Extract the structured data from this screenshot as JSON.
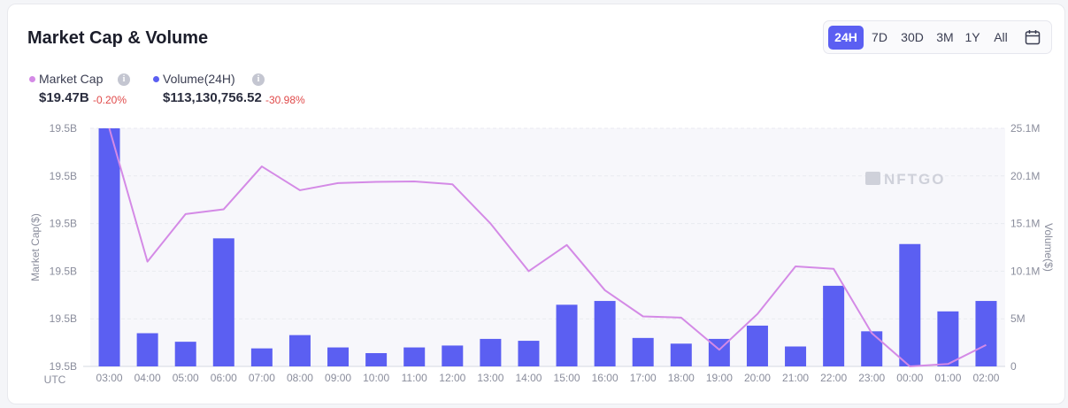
{
  "header": {
    "title": "Market Cap & Volume"
  },
  "ranges": {
    "items": [
      "24H",
      "7D",
      "30D",
      "3M",
      "1Y",
      "All"
    ],
    "active": "24H",
    "calendar_icon": "calendar-icon"
  },
  "summary": {
    "market_cap": {
      "label": "Market Cap",
      "value": "$19.47B",
      "change": "-0.20%",
      "color": "#d48ae6"
    },
    "volume": {
      "label": "Volume(24H)",
      "value": "$113,130,756.52",
      "change": "-30.98%",
      "color": "#5b5ff2"
    },
    "info_icon": "info-icon"
  },
  "watermark": "NFTGO",
  "chart_data": {
    "type": "bar",
    "x_label": "UTC",
    "categories": [
      "03:00",
      "04:00",
      "05:00",
      "06:00",
      "07:00",
      "08:00",
      "09:00",
      "10:00",
      "11:00",
      "12:00",
      "13:00",
      "14:00",
      "15:00",
      "16:00",
      "17:00",
      "18:00",
      "19:00",
      "20:00",
      "21:00",
      "22:00",
      "23:00",
      "00:00",
      "01:00",
      "02:00"
    ],
    "series": [
      {
        "name": "Volume(24H)",
        "type": "bar",
        "axis": "right",
        "color": "#5b5ff2",
        "values": [
          25.1,
          3.5,
          2.6,
          13.5,
          1.9,
          3.3,
          2.0,
          1.4,
          2.0,
          2.2,
          2.9,
          2.7,
          6.5,
          6.9,
          3.0,
          2.4,
          2.9,
          4.3,
          2.1,
          8.5,
          3.7,
          12.9,
          5.8,
          6.9
        ]
      },
      {
        "name": "Market Cap",
        "type": "line",
        "axis": "left",
        "color": "#d48ae6",
        "values": [
          1.0,
          0.44,
          0.64,
          0.66,
          0.84,
          0.74,
          0.77,
          0.775,
          0.777,
          0.765,
          0.6,
          0.4,
          0.51,
          0.32,
          0.21,
          0.205,
          0.07,
          0.22,
          0.42,
          0.41,
          0.14,
          0.0,
          0.01,
          0.09
        ]
      }
    ],
    "y_left": {
      "label": "Market Cap($)",
      "ticks": [
        "19.5B",
        "19.5B",
        "19.5B",
        "19.5B",
        "19.5B",
        "19.5B"
      ]
    },
    "y_right": {
      "label": "Volume($)",
      "ticks": [
        "0",
        "5M",
        "10.1M",
        "15.1M",
        "20.1M",
        "25.1M"
      ],
      "range": [
        0,
        25.1
      ]
    },
    "grid": true
  }
}
